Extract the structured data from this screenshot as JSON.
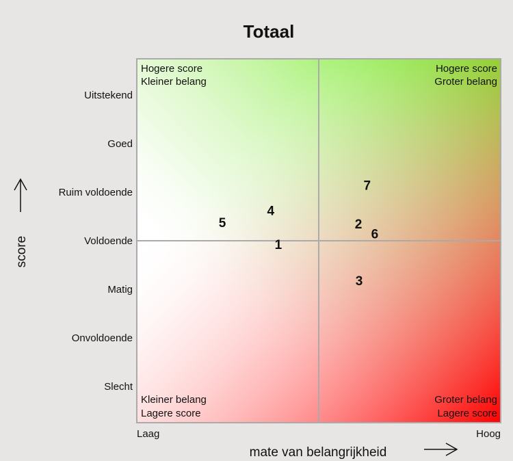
{
  "chart_data": {
    "type": "scatter",
    "title": "Totaal",
    "x_label": "mate van belangrijkheid",
    "y_label": "score",
    "xlim": [
      0,
      10
    ],
    "xticks": [
      {
        "value": 0,
        "label": "Laag"
      },
      {
        "value": 10,
        "label": "Hoog"
      }
    ],
    "ylim": [
      0.25,
      7.75
    ],
    "yticks": [
      {
        "value": 1,
        "label": "Slecht"
      },
      {
        "value": 2,
        "label": "Onvoldoende"
      },
      {
        "value": 3,
        "label": "Matig"
      },
      {
        "value": 4,
        "label": "Voldoende"
      },
      {
        "value": 5,
        "label": "Ruim voldoende"
      },
      {
        "value": 6,
        "label": "Goed"
      },
      {
        "value": 7,
        "label": "Uitstekend"
      }
    ],
    "x_split": 5,
    "y_split": 4,
    "labels": [
      "1",
      "2",
      "3",
      "4",
      "5",
      "6",
      "7"
    ],
    "x": [
      3.89,
      6.09,
      6.11,
      3.68,
      2.35,
      6.54,
      6.33
    ],
    "values": [
      3.93,
      4.35,
      3.18,
      4.63,
      4.38,
      4.15,
      5.15
    ],
    "quadrants": {
      "top_left": [
        "Hogere score",
        "Kleiner belang"
      ],
      "top_right": [
        "Hogere score",
        "Groter belang"
      ],
      "bottom_left": [
        "Kleiner belang",
        "Lagere score"
      ],
      "bottom_right": [
        "Groter belang",
        "Lagere score"
      ]
    }
  }
}
